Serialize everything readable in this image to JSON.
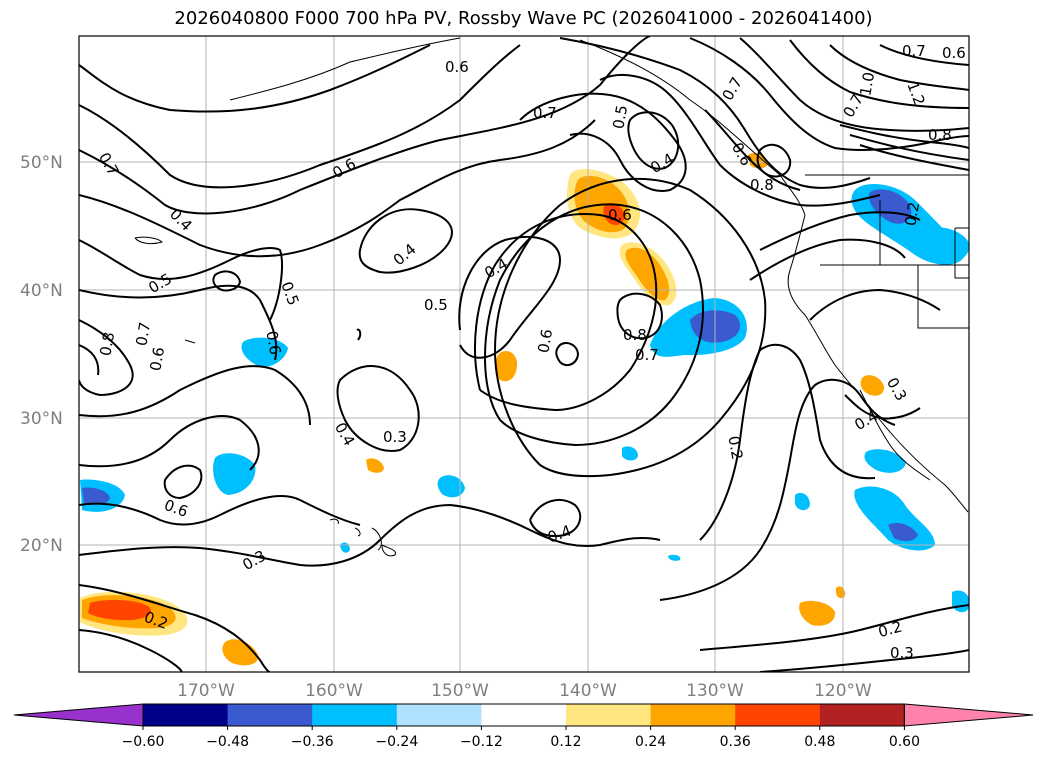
{
  "title": "2026040800 F000 700 hPa PV, Rossby Wave PC (2026041000 - 2026041400)",
  "longitude_labels": [
    "170°W",
    "160°W",
    "150°W",
    "140°W",
    "130°W",
    "120°W"
  ],
  "latitude_labels": [
    "50°N",
    "40°N",
    "30°N",
    "20°N"
  ],
  "contour_labels": [
    {
      "t": "0.6"
    },
    {
      "t": "0.7"
    },
    {
      "t": "0.5"
    },
    {
      "t": "0.7"
    },
    {
      "t": "0.7"
    },
    {
      "t": "0.6"
    },
    {
      "t": "1.0"
    },
    {
      "t": "0.7"
    },
    {
      "t": "1.2"
    },
    {
      "t": "0.8"
    },
    {
      "t": "0.4"
    },
    {
      "t": "0.6"
    },
    {
      "t": "0.8"
    },
    {
      "t": "0.6"
    },
    {
      "t": "0.6"
    },
    {
      "t": "0.7"
    },
    {
      "t": "0.2"
    },
    {
      "t": "0.4"
    },
    {
      "t": "0.4"
    },
    {
      "t": "0.5"
    },
    {
      "t": "0.4"
    },
    {
      "t": "0.5"
    },
    {
      "t": "0.5"
    },
    {
      "t": "0.6"
    },
    {
      "t": "0.8"
    },
    {
      "t": "0.7"
    },
    {
      "t": "0.6"
    },
    {
      "t": "0.6"
    },
    {
      "t": "0.8"
    },
    {
      "t": "0.7"
    },
    {
      "t": "0.4"
    },
    {
      "t": "0.3"
    },
    {
      "t": "0.3"
    },
    {
      "t": "0.4"
    },
    {
      "t": "0.2"
    },
    {
      "t": "0.6"
    },
    {
      "t": "0.3"
    },
    {
      "t": "0.4"
    },
    {
      "t": "0.2"
    },
    {
      "t": "0.2"
    },
    {
      "t": "0.3"
    }
  ],
  "colorbar": {
    "tick_labels": [
      "−0.60",
      "−0.48",
      "−0.36",
      "−0.24",
      "−0.12",
      "0.12",
      "0.24",
      "0.36",
      "0.48",
      "0.60"
    ],
    "colors": [
      "#9932cc",
      "#00008b",
      "#3a5bd0",
      "#00bfff",
      "#b0e2ff",
      "#ffffff",
      "#ffe680",
      "#ffa500",
      "#ff4500",
      "#b22222",
      "#ff82ab"
    ]
  }
}
